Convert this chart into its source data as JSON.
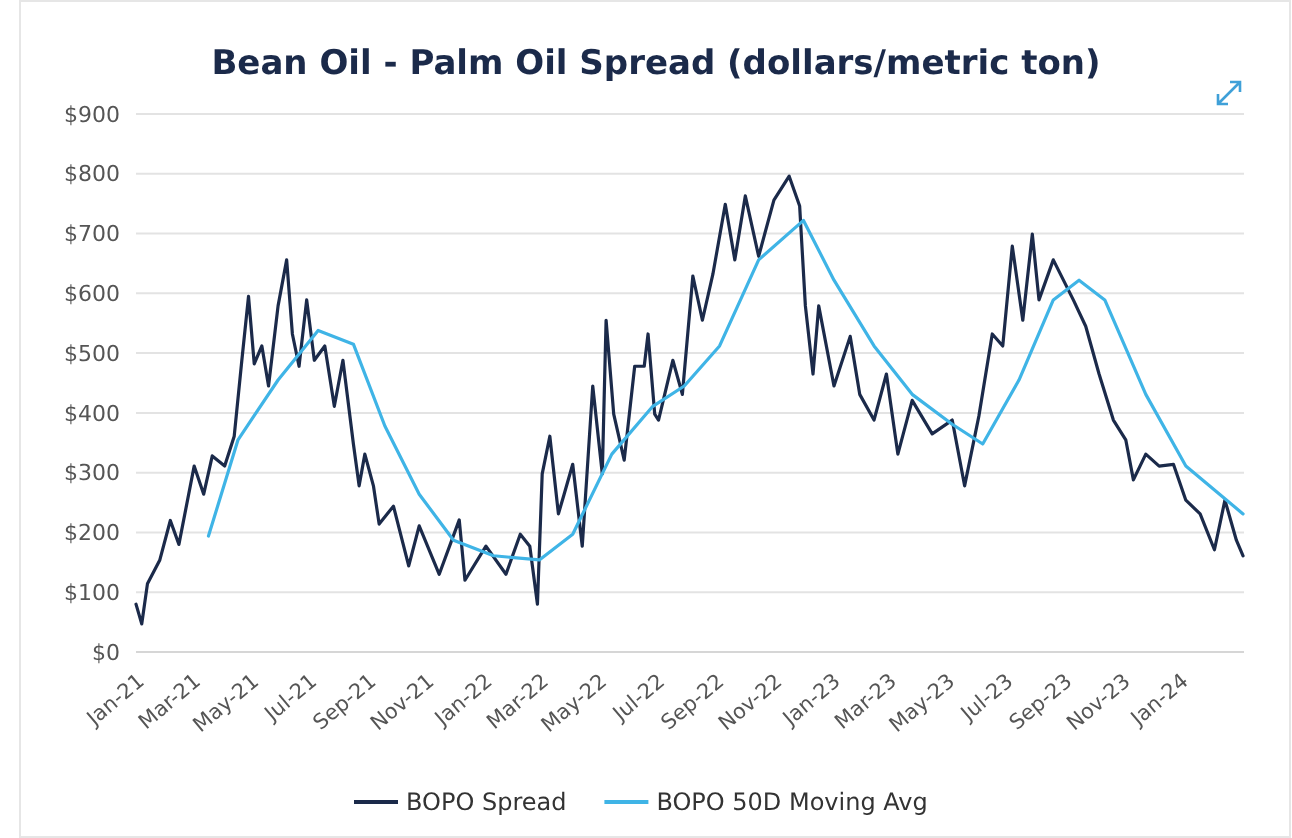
{
  "chart_data": {
    "type": "line",
    "title": "Bean Oil - Palm Oil Spread (dollars/metric ton)",
    "xlim": [
      "2021-01-01",
      "2024-03-08"
    ],
    "xticks": [
      {
        "value": "2021-01-01",
        "label": "Jan-21"
      },
      {
        "value": "2021-03-01",
        "label": "Mar-21"
      },
      {
        "value": "2021-05-01",
        "label": "May-21"
      },
      {
        "value": "2021-07-01",
        "label": "Jul-21"
      },
      {
        "value": "2021-09-01",
        "label": "Sep-21"
      },
      {
        "value": "2021-11-01",
        "label": "Nov-21"
      },
      {
        "value": "2022-01-01",
        "label": "Jan-22"
      },
      {
        "value": "2022-03-01",
        "label": "Mar-22"
      },
      {
        "value": "2022-05-01",
        "label": "May-22"
      },
      {
        "value": "2022-07-01",
        "label": "Jul-22"
      },
      {
        "value": "2022-09-01",
        "label": "Sep-22"
      },
      {
        "value": "2022-11-01",
        "label": "Nov-22"
      },
      {
        "value": "2023-01-01",
        "label": "Jan-23"
      },
      {
        "value": "2023-03-01",
        "label": "Mar-23"
      },
      {
        "value": "2023-05-01",
        "label": "May-23"
      },
      {
        "value": "2023-07-01",
        "label": "Jul-23"
      },
      {
        "value": "2023-09-01",
        "label": "Sep-23"
      },
      {
        "value": "2023-11-01",
        "label": "Nov-23"
      },
      {
        "value": "2024-01-01",
        "label": "Jan-24"
      }
    ],
    "ylim": [
      0,
      900
    ],
    "yticks": [
      {
        "value": 0,
        "label": "$0"
      },
      {
        "value": 100,
        "label": "$100"
      },
      {
        "value": 200,
        "label": "$200"
      },
      {
        "value": 300,
        "label": "$300"
      },
      {
        "value": 400,
        "label": "$400"
      },
      {
        "value": 500,
        "label": "$500"
      },
      {
        "value": 600,
        "label": "$600"
      },
      {
        "value": 700,
        "label": "$700"
      },
      {
        "value": 800,
        "label": "$800"
      },
      {
        "value": 900,
        "label": "$900"
      }
    ],
    "grid": "y",
    "legend": "bottom",
    "marker": "none",
    "line_style": "solid",
    "series": [
      {
        "name": "BOPO Spread",
        "color": "#1b2a4a",
        "x": [
          "2021-01-01",
          "2021-01-07",
          "2021-01-13",
          "2021-01-26",
          "2021-02-06",
          "2021-02-15",
          "2021-03-03",
          "2021-03-13",
          "2021-03-22",
          "2021-04-04",
          "2021-04-14",
          "2021-04-22",
          "2021-04-29",
          "2021-05-05",
          "2021-05-13",
          "2021-05-20",
          "2021-05-30",
          "2021-06-08",
          "2021-06-14",
          "2021-06-21",
          "2021-06-29",
          "2021-07-07",
          "2021-07-18",
          "2021-07-28",
          "2021-08-06",
          "2021-08-17",
          "2021-08-23",
          "2021-08-29",
          "2021-09-07",
          "2021-09-13",
          "2021-09-28",
          "2021-10-14",
          "2021-10-25",
          "2021-11-15",
          "2021-12-06",
          "2021-12-12",
          "2022-01-03",
          "2022-01-24",
          "2022-02-08",
          "2022-02-18",
          "2022-02-26",
          "2022-03-03",
          "2022-03-11",
          "2022-03-20",
          "2022-03-26",
          "2022-04-04",
          "2022-04-14",
          "2022-04-25",
          "2022-05-05",
          "2022-05-09",
          "2022-05-17",
          "2022-05-28",
          "2022-06-08",
          "2022-06-18",
          "2022-06-22",
          "2022-06-29",
          "2022-07-03",
          "2022-07-18",
          "2022-07-28",
          "2022-08-08",
          "2022-08-18",
          "2022-08-29",
          "2022-09-11",
          "2022-09-21",
          "2022-10-02",
          "2022-10-16",
          "2022-11-01",
          "2022-11-17",
          "2022-11-28",
          "2022-12-04",
          "2022-12-12",
          "2022-12-18",
          "2023-01-03",
          "2023-01-20",
          "2023-01-30",
          "2023-02-14",
          "2023-02-27",
          "2023-03-11",
          "2023-03-26",
          "2023-04-16",
          "2023-05-07",
          "2023-05-20",
          "2023-06-04",
          "2023-06-18",
          "2023-06-29",
          "2023-07-09",
          "2023-07-20",
          "2023-07-30",
          "2023-08-06",
          "2023-08-21",
          "2023-09-11",
          "2023-09-24",
          "2023-10-08",
          "2023-10-23",
          "2023-11-05",
          "2023-11-13",
          "2023-11-26",
          "2023-12-10",
          "2023-12-25",
          "2024-01-07",
          "2024-01-22",
          "2024-02-06",
          "2024-02-17",
          "2024-02-29",
          "2024-03-07"
        ],
        "values": [
          80,
          47,
          114,
          154,
          220,
          180,
          311,
          264,
          328,
          311,
          361,
          488,
          595,
          482,
          512,
          445,
          579,
          656,
          532,
          478,
          589,
          488,
          512,
          411,
          488,
          348,
          278,
          331,
          278,
          214,
          244,
          144,
          211,
          130,
          221,
          120,
          177,
          130,
          197,
          177,
          80,
          298,
          361,
          231,
          264,
          314,
          177,
          445,
          298,
          555,
          398,
          321,
          478,
          478,
          532,
          398,
          388,
          488,
          431,
          629,
          555,
          632,
          749,
          656,
          763,
          662,
          756,
          796,
          746,
          579,
          465,
          579,
          445,
          528,
          431,
          388,
          465,
          331,
          421,
          365,
          388,
          278,
          395,
          532,
          512,
          679,
          555,
          699,
          589,
          656,
          589,
          545,
          465,
          388,
          355,
          288,
          331,
          311,
          314,
          254,
          231,
          171,
          254,
          187,
          161
        ]
      },
      {
        "name": "BOPO 50D Moving Avg",
        "color": "#3fb4e6",
        "x": [
          "2021-03-18",
          "2021-04-18",
          "2021-05-30",
          "2021-07-11",
          "2021-08-17",
          "2021-09-19",
          "2021-10-25",
          "2021-11-30",
          "2022-01-11",
          "2022-02-28",
          "2022-04-04",
          "2022-05-15",
          "2022-06-27",
          "2022-07-30",
          "2022-09-05",
          "2022-10-16",
          "2022-12-02",
          "2023-01-03",
          "2023-02-14",
          "2023-03-26",
          "2023-05-07",
          "2023-06-08",
          "2023-07-16",
          "2023-08-21",
          "2023-09-17",
          "2023-10-14",
          "2023-11-26",
          "2024-01-07",
          "2024-03-07"
        ],
        "values": [
          194,
          355,
          455,
          538,
          515,
          378,
          264,
          187,
          161,
          154,
          197,
          331,
          411,
          445,
          512,
          656,
          722,
          622,
          512,
          431,
          381,
          348,
          455,
          589,
          622,
          589,
          431,
          311,
          231
        ]
      }
    ]
  }
}
